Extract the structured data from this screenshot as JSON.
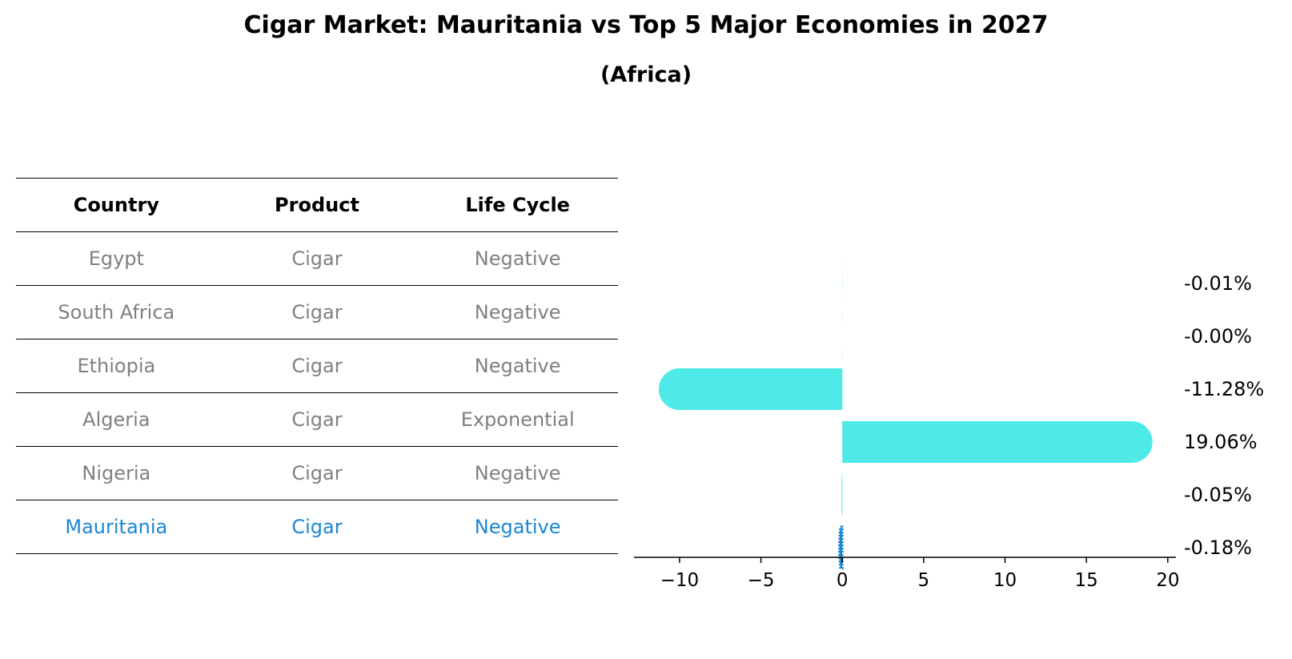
{
  "header": {
    "title": "Cigar Market: Mauritania vs Top 5 Major Economies in 2027",
    "subtitle": "(Africa)"
  },
  "table": {
    "columns": [
      "Country",
      "Product",
      "Life Cycle"
    ],
    "rows": [
      {
        "country": "Egypt",
        "product": "Cigar",
        "life_cycle": "Negative"
      },
      {
        "country": "South Africa",
        "product": "Cigar",
        "life_cycle": "Negative"
      },
      {
        "country": "Ethiopia",
        "product": "Cigar",
        "life_cycle": "Negative"
      },
      {
        "country": "Algeria",
        "product": "Cigar",
        "life_cycle": "Exponential"
      },
      {
        "country": "Nigeria",
        "product": "Cigar",
        "life_cycle": "Negative"
      },
      {
        "country": "Mauritania",
        "product": "Cigar",
        "life_cycle": "Negative"
      }
    ],
    "highlight_color": "#1a87d6",
    "text_color": "#808080"
  },
  "chart_data": {
    "type": "bar",
    "orientation": "horizontal",
    "categories": [
      "Egypt",
      "South Africa",
      "Ethiopia",
      "Algeria",
      "Nigeria",
      "Mauritania"
    ],
    "values": [
      -0.01,
      -0.0,
      -11.28,
      19.06,
      -0.05,
      -0.18
    ],
    "value_labels": [
      "-0.01%",
      "-0.00%",
      "-11.28%",
      "19.06%",
      "-0.05%",
      "-0.18%"
    ],
    "xlim": [
      -12.8,
      20.5
    ],
    "xticks": [
      -10,
      -5,
      0,
      5,
      10,
      15,
      20
    ],
    "xtick_labels": [
      "−10",
      "−5",
      "0",
      "5",
      "10",
      "15",
      "20"
    ],
    "bar_color": "#4deae8",
    "highlight_color": "#1a87d6",
    "grid": false
  }
}
